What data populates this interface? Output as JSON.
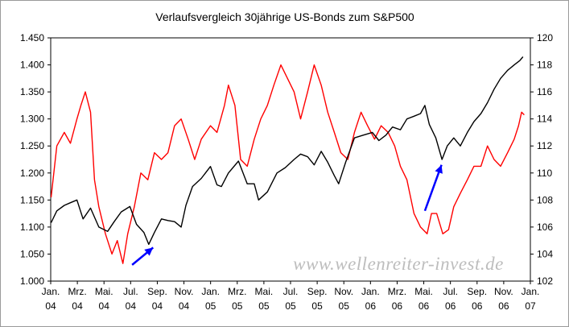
{
  "chart_data": {
    "type": "line",
    "title": "Verlaufsvergleich 30jährige US-Bonds zum S&P500",
    "watermark": "www.wellenreiter-invest.de",
    "x_ticks": [
      {
        "month": "Jan.",
        "year": "04"
      },
      {
        "month": "Mrz.",
        "year": "04"
      },
      {
        "month": "Mai.",
        "year": "04"
      },
      {
        "month": "Jul.",
        "year": "04"
      },
      {
        "month": "Sep.",
        "year": "04"
      },
      {
        "month": "Nov.",
        "year": "04"
      },
      {
        "month": "Jan.",
        "year": "05"
      },
      {
        "month": "Mrz.",
        "year": "05"
      },
      {
        "month": "Mai.",
        "year": "05"
      },
      {
        "month": "Jul.",
        "year": "05"
      },
      {
        "month": "Sep.",
        "year": "05"
      },
      {
        "month": "Nov.",
        "year": "05"
      },
      {
        "month": "Jan.",
        "year": "06"
      },
      {
        "month": "Mrz.",
        "year": "06"
      },
      {
        "month": "Mai.",
        "year": "06"
      },
      {
        "month": "Jul.",
        "year": "06"
      },
      {
        "month": "Sep.",
        "year": "06"
      },
      {
        "month": "Nov.",
        "year": "06"
      },
      {
        "month": "Jan.",
        "year": "07"
      }
    ],
    "xlim": [
      "2004-01-01",
      "2007-01-01"
    ],
    "y_left": {
      "ylim": [
        1000,
        1450
      ],
      "ticks": [
        1000,
        1050,
        1100,
        1150,
        1200,
        1250,
        1300,
        1350,
        1400,
        1450
      ],
      "tick_labels": [
        "1.000",
        "1.050",
        "1.100",
        "1.150",
        "1.200",
        "1.250",
        "1.300",
        "1.350",
        "1.400",
        "1.450"
      ]
    },
    "y_right": {
      "ylim": [
        102,
        120
      ],
      "ticks": [
        102,
        104,
        106,
        108,
        110,
        112,
        114,
        116,
        118,
        120
      ],
      "tick_labels": [
        "102",
        "104",
        "106",
        "108",
        "110",
        "112",
        "114",
        "116",
        "118",
        "120"
      ]
    },
    "grid": false,
    "series": [
      {
        "axis": "left",
        "color": "#000000",
        "points": [
          [
            "2004-01-02",
            1108
          ],
          [
            "2004-01-15",
            1130
          ],
          [
            "2004-02-01",
            1140
          ],
          [
            "2004-02-15",
            1145
          ],
          [
            "2004-03-01",
            1150
          ],
          [
            "2004-03-15",
            1115
          ],
          [
            "2004-04-01",
            1135
          ],
          [
            "2004-04-20",
            1100
          ],
          [
            "2004-05-10",
            1092
          ],
          [
            "2004-05-25",
            1110
          ],
          [
            "2004-06-10",
            1128
          ],
          [
            "2004-06-30",
            1138
          ],
          [
            "2004-07-15",
            1105
          ],
          [
            "2004-08-01",
            1090
          ],
          [
            "2004-08-12",
            1068
          ],
          [
            "2004-08-25",
            1090
          ],
          [
            "2004-09-10",
            1115
          ],
          [
            "2004-09-25",
            1112
          ],
          [
            "2004-10-10",
            1110
          ],
          [
            "2004-10-25",
            1100
          ],
          [
            "2004-11-05",
            1140
          ],
          [
            "2004-11-20",
            1175
          ],
          [
            "2004-12-10",
            1190
          ],
          [
            "2004-12-31",
            1212
          ],
          [
            "2005-01-15",
            1178
          ],
          [
            "2005-01-25",
            1175
          ],
          [
            "2005-02-10",
            1200
          ],
          [
            "2005-03-05",
            1222
          ],
          [
            "2005-03-25",
            1180
          ],
          [
            "2005-04-10",
            1180
          ],
          [
            "2005-04-20",
            1150
          ],
          [
            "2005-05-10",
            1165
          ],
          [
            "2005-06-01",
            1200
          ],
          [
            "2005-06-20",
            1210
          ],
          [
            "2005-07-10",
            1225
          ],
          [
            "2005-07-25",
            1235
          ],
          [
            "2005-08-10",
            1230
          ],
          [
            "2005-08-25",
            1215
          ],
          [
            "2005-09-10",
            1240
          ],
          [
            "2005-09-25",
            1220
          ],
          [
            "2005-10-10",
            1195
          ],
          [
            "2005-10-20",
            1180
          ],
          [
            "2005-11-05",
            1220
          ],
          [
            "2005-11-25",
            1265
          ],
          [
            "2005-12-15",
            1270
          ],
          [
            "2006-01-05",
            1275
          ],
          [
            "2006-01-20",
            1260
          ],
          [
            "2006-02-05",
            1270
          ],
          [
            "2006-02-20",
            1285
          ],
          [
            "2006-03-10",
            1280
          ],
          [
            "2006-03-25",
            1300
          ],
          [
            "2006-04-10",
            1305
          ],
          [
            "2006-04-25",
            1310
          ],
          [
            "2006-05-05",
            1325
          ],
          [
            "2006-05-15",
            1290
          ],
          [
            "2006-05-30",
            1265
          ],
          [
            "2006-06-13",
            1225
          ],
          [
            "2006-06-25",
            1250
          ],
          [
            "2006-07-10",
            1265
          ],
          [
            "2006-07-25",
            1250
          ],
          [
            "2006-08-10",
            1275
          ],
          [
            "2006-08-25",
            1295
          ],
          [
            "2006-09-10",
            1310
          ],
          [
            "2006-09-25",
            1330
          ],
          [
            "2006-10-10",
            1355
          ],
          [
            "2006-10-25",
            1375
          ],
          [
            "2006-11-10",
            1390
          ],
          [
            "2006-11-25",
            1400
          ],
          [
            "2006-12-08",
            1408
          ],
          [
            "2006-12-15",
            1415
          ]
        ]
      },
      {
        "axis": "right",
        "color": "#ff0000",
        "points": [
          [
            "2004-01-02",
            108.2
          ],
          [
            "2004-01-15",
            112.0
          ],
          [
            "2004-02-01",
            113.0
          ],
          [
            "2004-02-15",
            112.2
          ],
          [
            "2004-03-01",
            114.0
          ],
          [
            "2004-03-10",
            115.0
          ],
          [
            "2004-03-20",
            116.0
          ],
          [
            "2004-04-01",
            114.5
          ],
          [
            "2004-04-10",
            109.5
          ],
          [
            "2004-04-20",
            107.5
          ],
          [
            "2004-05-05",
            105.5
          ],
          [
            "2004-05-20",
            104.0
          ],
          [
            "2004-06-01",
            105.0
          ],
          [
            "2004-06-14",
            103.3
          ],
          [
            "2004-06-25",
            105.5
          ],
          [
            "2004-07-10",
            107.5
          ],
          [
            "2004-07-25",
            110.0
          ],
          [
            "2004-08-10",
            109.5
          ],
          [
            "2004-08-25",
            111.5
          ],
          [
            "2004-09-10",
            111.0
          ],
          [
            "2004-09-25",
            111.5
          ],
          [
            "2004-10-10",
            113.5
          ],
          [
            "2004-10-25",
            114.0
          ],
          [
            "2004-11-10",
            112.5
          ],
          [
            "2004-11-25",
            111.0
          ],
          [
            "2004-12-10",
            112.5
          ],
          [
            "2004-12-31",
            113.5
          ],
          [
            "2005-01-15",
            113.0
          ],
          [
            "2005-02-01",
            115.0
          ],
          [
            "2005-02-10",
            116.5
          ],
          [
            "2005-02-25",
            115.0
          ],
          [
            "2005-03-10",
            111.0
          ],
          [
            "2005-03-25",
            110.5
          ],
          [
            "2005-04-10",
            112.5
          ],
          [
            "2005-04-25",
            114.0
          ],
          [
            "2005-05-10",
            115.0
          ],
          [
            "2005-05-25",
            116.5
          ],
          [
            "2005-06-10",
            118.0
          ],
          [
            "2005-06-25",
            117.0
          ],
          [
            "2005-07-10",
            116.0
          ],
          [
            "2005-07-25",
            114.0
          ],
          [
            "2005-08-10",
            116.0
          ],
          [
            "2005-08-25",
            118.0
          ],
          [
            "2005-09-10",
            116.5
          ],
          [
            "2005-09-25",
            114.5
          ],
          [
            "2005-10-10",
            113.0
          ],
          [
            "2005-10-25",
            111.5
          ],
          [
            "2005-11-10",
            111.0
          ],
          [
            "2005-11-25",
            113.0
          ],
          [
            "2005-12-10",
            114.5
          ],
          [
            "2005-12-25",
            113.5
          ],
          [
            "2006-01-10",
            112.5
          ],
          [
            "2006-01-25",
            113.5
          ],
          [
            "2006-02-10",
            113.0
          ],
          [
            "2006-02-25",
            112.0
          ],
          [
            "2006-03-10",
            110.5
          ],
          [
            "2006-03-25",
            109.5
          ],
          [
            "2006-04-10",
            107.0
          ],
          [
            "2006-04-25",
            106.0
          ],
          [
            "2006-05-10",
            105.5
          ],
          [
            "2006-05-20",
            107.0
          ],
          [
            "2006-06-01",
            107.0
          ],
          [
            "2006-06-15",
            105.5
          ],
          [
            "2006-06-28",
            105.8
          ],
          [
            "2006-07-10",
            107.5
          ],
          [
            "2006-07-25",
            108.5
          ],
          [
            "2006-08-10",
            109.5
          ],
          [
            "2006-08-25",
            110.5
          ],
          [
            "2006-09-10",
            110.5
          ],
          [
            "2006-09-25",
            112.0
          ],
          [
            "2006-10-10",
            111.0
          ],
          [
            "2006-10-25",
            110.5
          ],
          [
            "2006-11-10",
            111.5
          ],
          [
            "2006-11-25",
            112.5
          ],
          [
            "2006-12-05",
            113.5
          ],
          [
            "2006-12-12",
            114.5
          ],
          [
            "2006-12-18",
            114.3
          ]
        ]
      }
    ],
    "annotations": [
      {
        "type": "arrow",
        "color": "#0000ff",
        "from": [
          "2004-07-05",
          1030
        ],
        "to": [
          "2004-08-22",
          1062
        ],
        "axis": "left"
      },
      {
        "type": "arrow",
        "color": "#0000ff",
        "from": [
          "2006-05-05",
          1130
        ],
        "to": [
          "2006-06-12",
          1215
        ],
        "axis": "left"
      }
    ]
  }
}
